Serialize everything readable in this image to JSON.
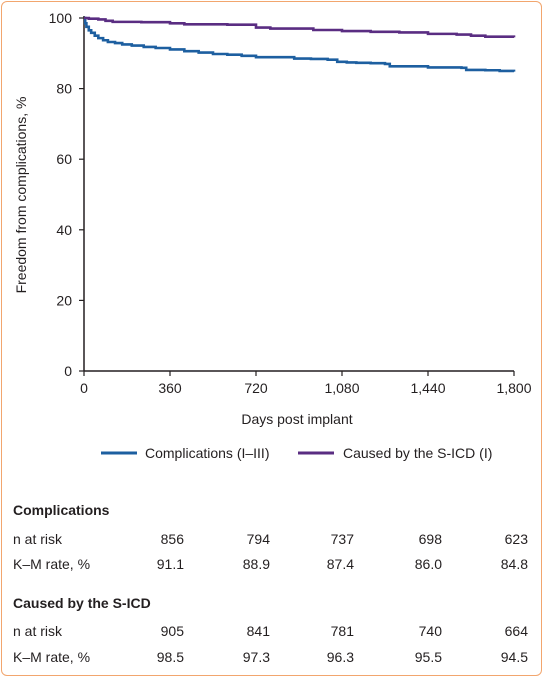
{
  "chart_data": {
    "type": "line",
    "xlabel": "Days post implant",
    "ylabel": "Freedom from complications, %",
    "xlim": [
      0,
      1800
    ],
    "ylim": [
      0,
      100
    ],
    "x_ticks": [
      "0",
      "360",
      "720",
      "1,080",
      "1,440",
      "1,800"
    ],
    "y_ticks": [
      "0",
      "20",
      "40",
      "60",
      "80",
      "100"
    ],
    "legend_position": "bottom",
    "series": [
      {
        "name": "Complications (I–III)",
        "color": "#1d5fa0",
        "step": true,
        "x": [
          0,
          5,
          10,
          20,
          30,
          45,
          60,
          80,
          100,
          130,
          160,
          200,
          250,
          300,
          360,
          420,
          480,
          540,
          600,
          660,
          720,
          800,
          880,
          950,
          1020,
          1060,
          1100,
          1140,
          1200,
          1260,
          1280,
          1440,
          1500,
          1580,
          1600,
          1680,
          1740,
          1800
        ],
        "y": [
          100,
          98.5,
          97.5,
          96.5,
          95.8,
          95.0,
          94.3,
          93.7,
          93.2,
          92.9,
          92.5,
          92.2,
          91.8,
          91.5,
          91.1,
          90.6,
          90.2,
          89.8,
          89.6,
          89.3,
          88.9,
          88.9,
          88.5,
          88.4,
          88.2,
          87.6,
          87.4,
          87.3,
          87.2,
          87.0,
          86.3,
          86.0,
          86.0,
          85.9,
          85.3,
          85.2,
          85.0,
          84.8
        ]
      },
      {
        "name": "Caused by the S-ICD (I)",
        "color": "#5a2d82",
        "step": true,
        "x": [
          0,
          20,
          60,
          90,
          120,
          240,
          360,
          420,
          600,
          720,
          780,
          960,
          1080,
          1200,
          1320,
          1440,
          1560,
          1620,
          1680,
          1800
        ],
        "y": [
          100,
          99.8,
          99.6,
          99.2,
          98.9,
          98.8,
          98.5,
          98.2,
          98.1,
          97.3,
          97.0,
          96.6,
          96.3,
          96.1,
          95.9,
          95.5,
          95.3,
          95.0,
          94.7,
          94.5
        ]
      }
    ]
  },
  "tables": [
    {
      "title": "Complications",
      "rows": [
        {
          "label": "n at risk",
          "values": [
            "856",
            "794",
            "737",
            "698",
            "623"
          ]
        },
        {
          "label": "K–M rate, %",
          "values": [
            "91.1",
            "88.9",
            "87.4",
            "86.0",
            "84.8"
          ]
        }
      ]
    },
    {
      "title": "Caused by the S-ICD",
      "rows": [
        {
          "label": "n at risk",
          "values": [
            "905",
            "841",
            "781",
            "740",
            "664"
          ]
        },
        {
          "label": "K–M rate, %",
          "values": [
            "98.5",
            "97.3",
            "96.3",
            "95.5",
            "94.5"
          ]
        }
      ]
    }
  ]
}
